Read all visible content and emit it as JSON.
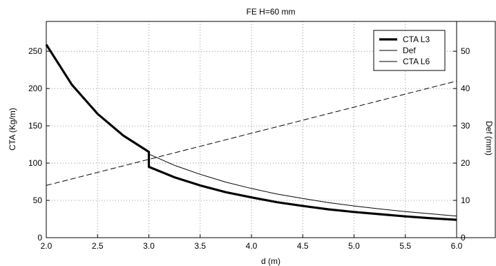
{
  "chart_data": {
    "type": "line",
    "title": "FE H=60 mm",
    "xlabel": "d (m)",
    "ylabel_left": "CTA (Kg/m)",
    "ylabel_right": "Def (mm)",
    "xlim": [
      2.0,
      6.0
    ],
    "ylim_left": [
      0,
      290
    ],
    "ylim_right": [
      0,
      58
    ],
    "x_ticks": [
      "2.0",
      "2.5",
      "3.0",
      "3.5",
      "4.0",
      "4.5",
      "5.0",
      "5.5",
      "6.0"
    ],
    "y_ticks_left": [
      "0",
      "50",
      "100",
      "150",
      "200",
      "250"
    ],
    "y_ticks_right": [
      "0",
      "10",
      "20",
      "30",
      "40",
      "50"
    ],
    "grid": true,
    "legend_position": "top-right",
    "series": [
      {
        "name": "CTA L3",
        "axis": "left",
        "style": "thick",
        "x": [
          2.0,
          2.25,
          2.5,
          2.75,
          3.0,
          3.0,
          3.25,
          3.5,
          3.75,
          4.0,
          4.25,
          4.5,
          4.75,
          5.0,
          5.25,
          5.5,
          5.75,
          6.0
        ],
        "y": [
          259,
          205,
          166,
          137,
          115,
          95,
          81,
          70,
          61,
          54,
          47.5,
          42.5,
          38,
          34.5,
          31.5,
          28.5,
          26,
          24
        ]
      },
      {
        "name": "Def",
        "axis": "right",
        "style": "dashed",
        "x": [
          2.0,
          6.0
        ],
        "y": [
          14,
          42
        ]
      },
      {
        "name": "CTA L6",
        "axis": "left",
        "style": "thin",
        "x": [
          3.0,
          3.25,
          3.5,
          3.75,
          4.0,
          4.25,
          4.5,
          4.75,
          5.0,
          5.25,
          5.5,
          5.75,
          6.0
        ],
        "y": [
          112,
          97,
          85,
          74.5,
          66,
          58.5,
          52.5,
          47,
          42.5,
          38.5,
          35,
          32,
          29
        ]
      }
    ]
  }
}
